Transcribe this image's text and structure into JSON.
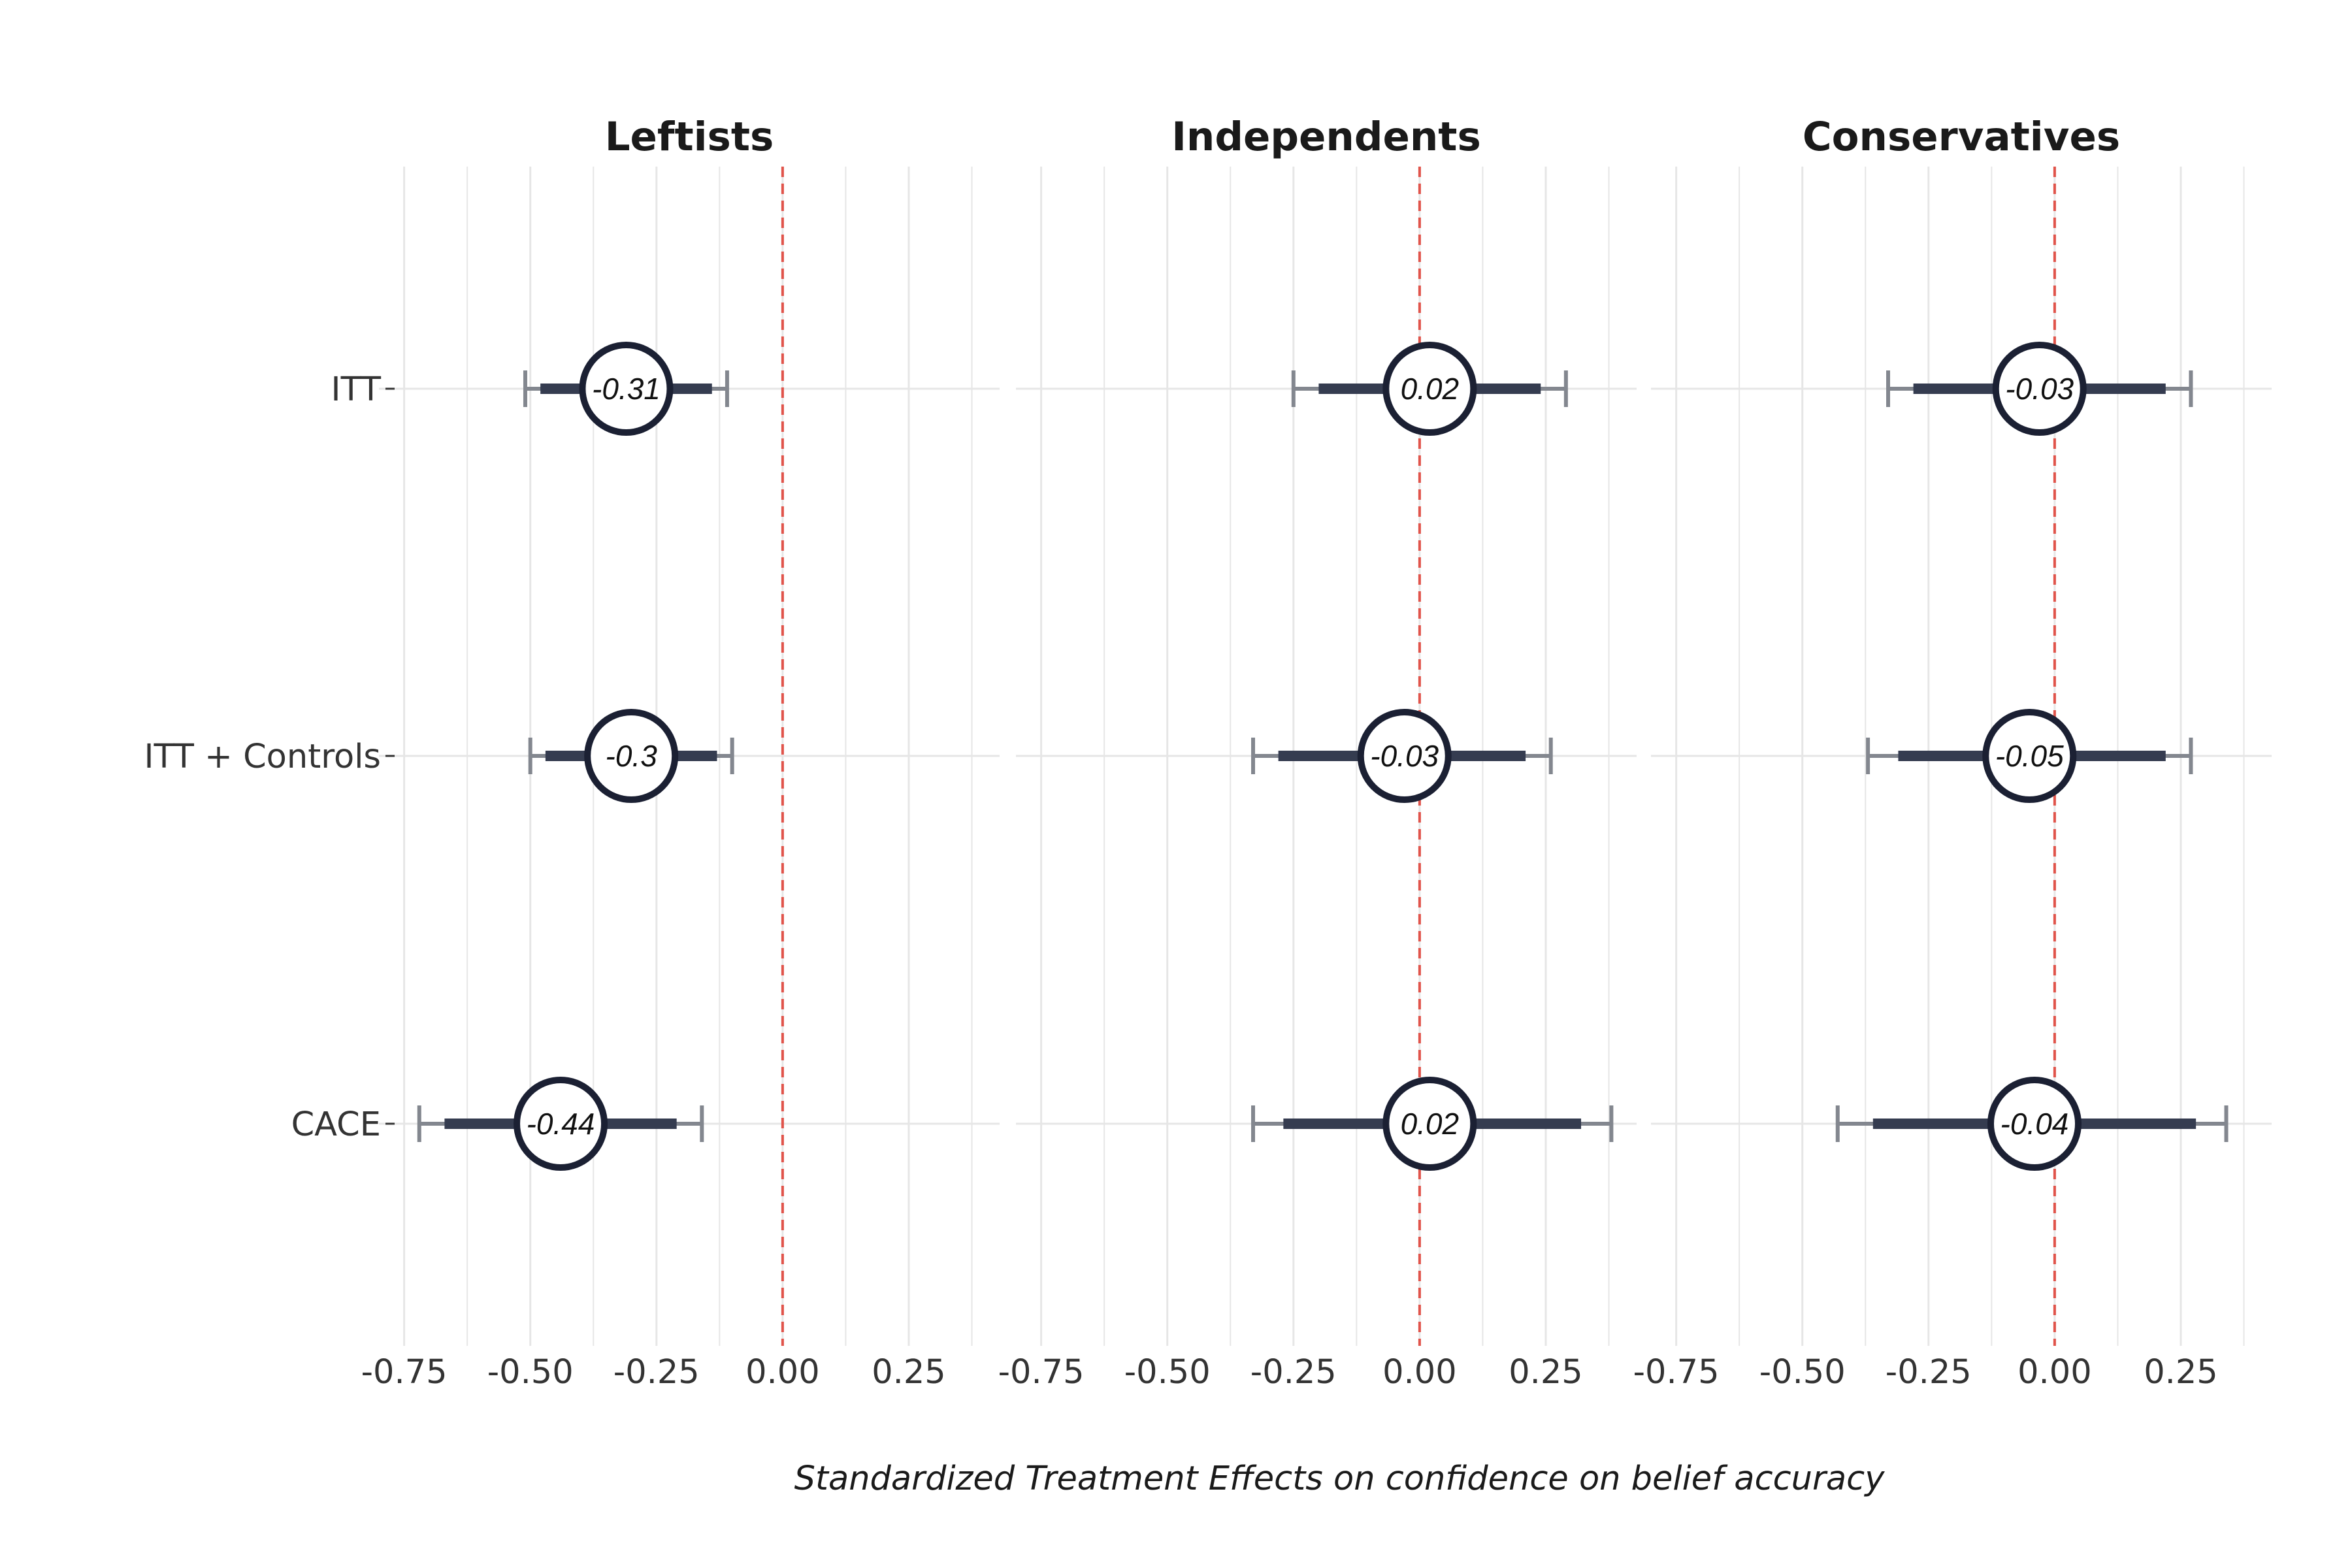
{
  "chart_data": {
    "type": "forest",
    "xlabel": "Standardized Treatment Effects on confidence on belief accuracy",
    "ylabel": "",
    "xlim": [
      -0.8,
      0.43
    ],
    "x_ticks": [
      -0.75,
      -0.5,
      -0.25,
      0.0,
      0.25
    ],
    "x_tick_labels": [
      "-0.75",
      "-0.50",
      "-0.25",
      "0.00",
      "0.25"
    ],
    "reference_line": 0,
    "grid": true,
    "categories": [
      "ITT",
      "ITT + Controls",
      "CACE"
    ],
    "panels": [
      {
        "title": "Leftists",
        "rows": [
          {
            "category": "ITT",
            "estimate": -0.31,
            "label": "-0.31",
            "ci90": [
              -0.48,
              -0.14
            ],
            "ci95": [
              -0.51,
              -0.11
            ]
          },
          {
            "category": "ITT + Controls",
            "estimate": -0.3,
            "label": "-0.3",
            "ci90": [
              -0.47,
              -0.13
            ],
            "ci95": [
              -0.5,
              -0.1
            ]
          },
          {
            "category": "CACE",
            "estimate": -0.44,
            "label": "-0.44",
            "ci90": [
              -0.67,
              -0.21
            ],
            "ci95": [
              -0.72,
              -0.16
            ]
          }
        ]
      },
      {
        "title": "Independents",
        "rows": [
          {
            "category": "ITT",
            "estimate": 0.02,
            "label": "0.02",
            "ci90": [
              -0.2,
              0.24
            ],
            "ci95": [
              -0.25,
              0.29
            ]
          },
          {
            "category": "ITT + Controls",
            "estimate": -0.03,
            "label": "-0.03",
            "ci90": [
              -0.28,
              0.21
            ],
            "ci95": [
              -0.33,
              0.26
            ]
          },
          {
            "category": "CACE",
            "estimate": 0.02,
            "label": "0.02",
            "ci90": [
              -0.27,
              0.32
            ],
            "ci95": [
              -0.33,
              0.38
            ]
          }
        ]
      },
      {
        "title": "Conservatives",
        "rows": [
          {
            "category": "ITT",
            "estimate": -0.03,
            "label": "-0.03",
            "ci90": [
              -0.28,
              0.22
            ],
            "ci95": [
              -0.33,
              0.27
            ]
          },
          {
            "category": "ITT + Controls",
            "estimate": -0.05,
            "label": "-0.05",
            "ci90": [
              -0.31,
              0.22
            ],
            "ci95": [
              -0.37,
              0.27
            ]
          },
          {
            "category": "CACE",
            "estimate": -0.04,
            "label": "-0.04",
            "ci90": [
              -0.36,
              0.28
            ],
            "ci95": [
              -0.43,
              0.34
            ]
          }
        ]
      }
    ],
    "colors": {
      "point_edge": "#1b2033",
      "ci90": "#353c50",
      "ci95": "#83878f",
      "reference_line": "#e0544b",
      "grid": "#e6e6e6"
    }
  }
}
